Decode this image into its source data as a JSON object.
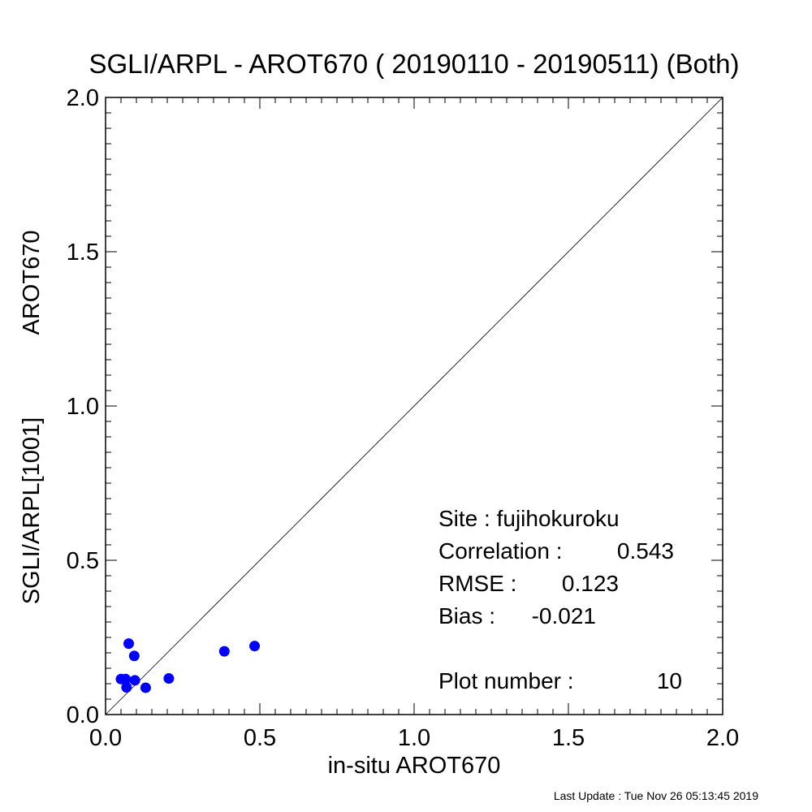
{
  "chart_data": {
    "type": "scatter",
    "title": "SGLI/ARPL - AROT670 ( 20190110 - 20190511) (Both)",
    "xlabel": "in-situ AROT670",
    "ylabel_left": "SGLI/ARPL[1001]",
    "ylabel_right": "AROT670",
    "xlim": [
      0.0,
      2.0
    ],
    "ylim": [
      0.0,
      2.0
    ],
    "x_ticks": [
      "0.0",
      "0.5",
      "1.0",
      "1.5",
      "2.0"
    ],
    "y_ticks": [
      "0.0",
      "0.5",
      "1.0",
      "1.5",
      "2.0"
    ],
    "grid": false,
    "reference_line": "1:1",
    "marker_color": "#0000ff",
    "points": [
      {
        "x": 0.05,
        "y": 0.115
      },
      {
        "x": 0.065,
        "y": 0.115
      },
      {
        "x": 0.068,
        "y": 0.088
      },
      {
        "x": 0.075,
        "y": 0.23
      },
      {
        "x": 0.093,
        "y": 0.19
      },
      {
        "x": 0.095,
        "y": 0.111
      },
      {
        "x": 0.13,
        "y": 0.087
      },
      {
        "x": 0.205,
        "y": 0.117
      },
      {
        "x": 0.385,
        "y": 0.205
      },
      {
        "x": 0.483,
        "y": 0.222
      }
    ],
    "annotations": {
      "site": "Site : fujihokuroku",
      "correlation_label": "Correlation :",
      "correlation_value": "0.543",
      "rmse_label": "RMSE :",
      "rmse_value": "0.123",
      "bias_label": "Bias :",
      "bias_value": "-0.021",
      "plot_number_label": "Plot number :",
      "plot_number_value": "10"
    }
  },
  "footer": "Last Update : Tue Nov 26 05:13:45 2019"
}
